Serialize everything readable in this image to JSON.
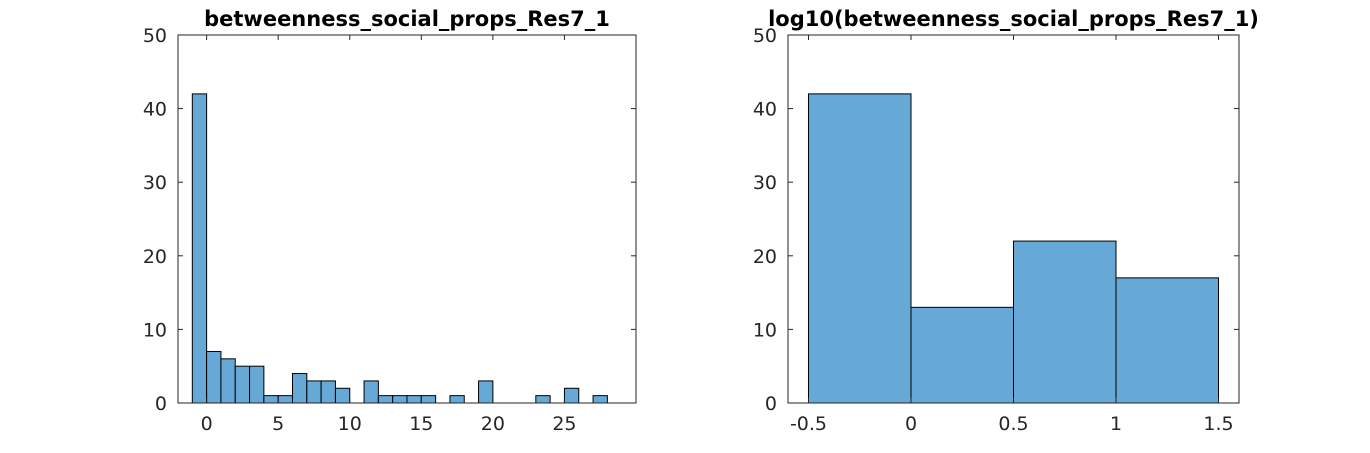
{
  "chart_data": [
    {
      "type": "bar",
      "title": "betweenness_social_props_Res7_1",
      "xlabel": "",
      "ylabel": "",
      "xlim": [
        -2,
        30
      ],
      "ylim": [
        0,
        50
      ],
      "xticks": [
        0,
        5,
        10,
        15,
        20,
        25
      ],
      "yticks": [
        0,
        10,
        20,
        30,
        40,
        50
      ],
      "bin_width": 1,
      "bin_centers": [
        -0.5,
        0.5,
        1.5,
        2.5,
        3.5,
        4.5,
        5.5,
        6.5,
        7.5,
        8.5,
        9.5,
        10.5,
        11.5,
        12.5,
        13.5,
        14.5,
        15.5,
        16.5,
        17.5,
        18.5,
        19.5,
        20.5,
        21.5,
        22.5,
        23.5,
        24.5,
        25.5,
        26.5,
        27.5,
        28.5
      ],
      "values": [
        42,
        7,
        6,
        5,
        5,
        1,
        1,
        4,
        3,
        3,
        2,
        0,
        3,
        1,
        1,
        1,
        1,
        0,
        1,
        0,
        3,
        0,
        0,
        0,
        1,
        0,
        2,
        0,
        1,
        0
      ],
      "colors": {
        "bar": "#67a9d6",
        "edge": "#000000"
      }
    },
    {
      "type": "bar",
      "title": "log10(betweenness_social_props_Res7_1)",
      "xlabel": "",
      "ylabel": "",
      "xlim": [
        -0.6,
        1.6
      ],
      "ylim": [
        0,
        50
      ],
      "xticks": [
        -0.5,
        0,
        0.5,
        1,
        1.5
      ],
      "yticks": [
        0,
        10,
        20,
        30,
        40,
        50
      ],
      "bin_width": 0.5,
      "bin_centers": [
        -0.25,
        0.25,
        0.75,
        1.25
      ],
      "values": [
        42,
        13,
        22,
        17
      ],
      "colors": {
        "bar": "#67a9d6",
        "edge": "#000000"
      }
    }
  ]
}
